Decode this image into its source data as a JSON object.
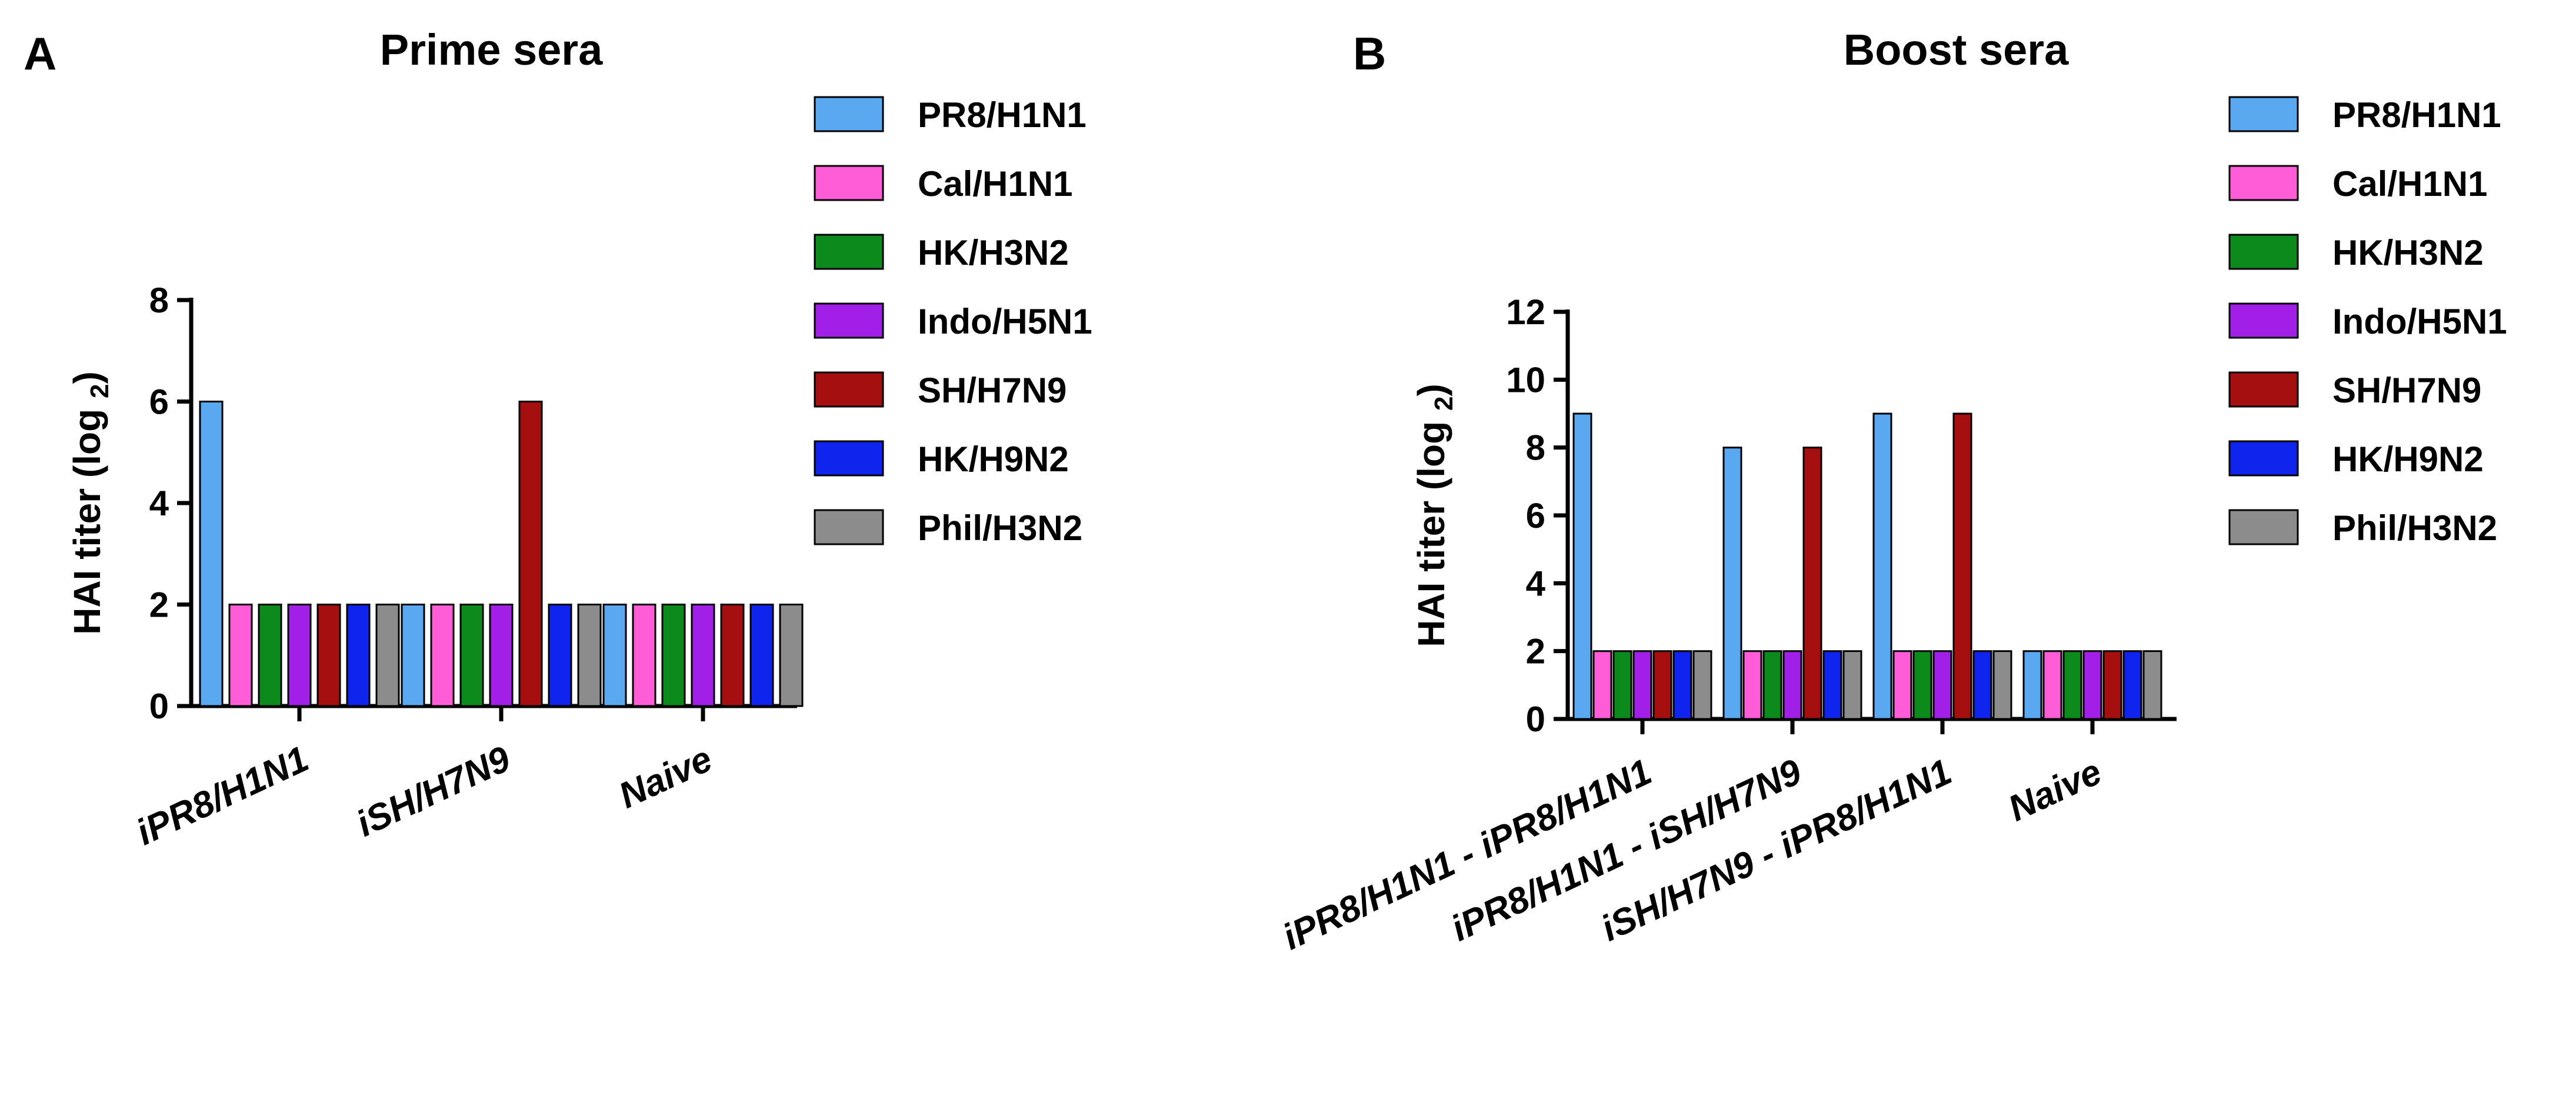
{
  "legend_colors": [
    "#5aa9f0",
    "#ff5cd7",
    "#0c8a1c",
    "#a21fe8",
    "#a50f10",
    "#0f25ee",
    "#8c8c8c"
  ],
  "chart_data": [
    {
      "type": "bar",
      "panel_label": "A",
      "title": "Prime sera",
      "ylabel": "HAI titer (log",
      "ylabel_sub": "2",
      "ylabel_close": ")",
      "xlabel": "",
      "ylim": [
        0,
        8
      ],
      "yticks": [
        0,
        2,
        4,
        6,
        8
      ],
      "categories": [
        "iPR8/H1N1",
        "iSH/H7N9",
        "Naive"
      ],
      "series": [
        {
          "name": "PR8/H1N1",
          "values": [
            6,
            2,
            2
          ]
        },
        {
          "name": "Cal/H1N1",
          "values": [
            2,
            2,
            2
          ]
        },
        {
          "name": "HK/H3N2",
          "values": [
            2,
            2,
            2
          ]
        },
        {
          "name": "Indo/H5N1",
          "values": [
            2,
            2,
            2
          ]
        },
        {
          "name": "SH/H7N9",
          "values": [
            2,
            6,
            2
          ]
        },
        {
          "name": "HK/H9N2",
          "values": [
            2,
            2,
            2
          ]
        },
        {
          "name": "Phil/H3N2",
          "values": [
            2,
            2,
            2
          ]
        }
      ],
      "legend_position": "right"
    },
    {
      "type": "bar",
      "panel_label": "B",
      "title": "Boost sera",
      "ylabel": "HAI titer (log",
      "ylabel_sub": "2",
      "ylabel_close": ")",
      "xlabel": "",
      "ylim": [
        0,
        12
      ],
      "yticks": [
        0,
        2,
        4,
        6,
        8,
        10,
        12
      ],
      "categories": [
        "iPR8/H1N1 - iPR8/H1N1",
        "iPR8/H1N1 - iSH/H7N9",
        "iSH/H7N9 - iPR8/H1N1",
        "Naive"
      ],
      "series": [
        {
          "name": "PR8/H1N1",
          "values": [
            9,
            8,
            9,
            2
          ]
        },
        {
          "name": "Cal/H1N1",
          "values": [
            2,
            2,
            2,
            2
          ]
        },
        {
          "name": "HK/H3N2",
          "values": [
            2,
            2,
            2,
            2
          ]
        },
        {
          "name": "Indo/H5N1",
          "values": [
            2,
            2,
            2,
            2
          ]
        },
        {
          "name": "SH/H7N9",
          "values": [
            2,
            8,
            9,
            2
          ]
        },
        {
          "name": "HK/H9N2",
          "values": [
            2,
            2,
            2,
            2
          ]
        },
        {
          "name": "Phil/H3N2",
          "values": [
            2,
            2,
            2,
            2
          ]
        }
      ],
      "legend_position": "right"
    }
  ]
}
